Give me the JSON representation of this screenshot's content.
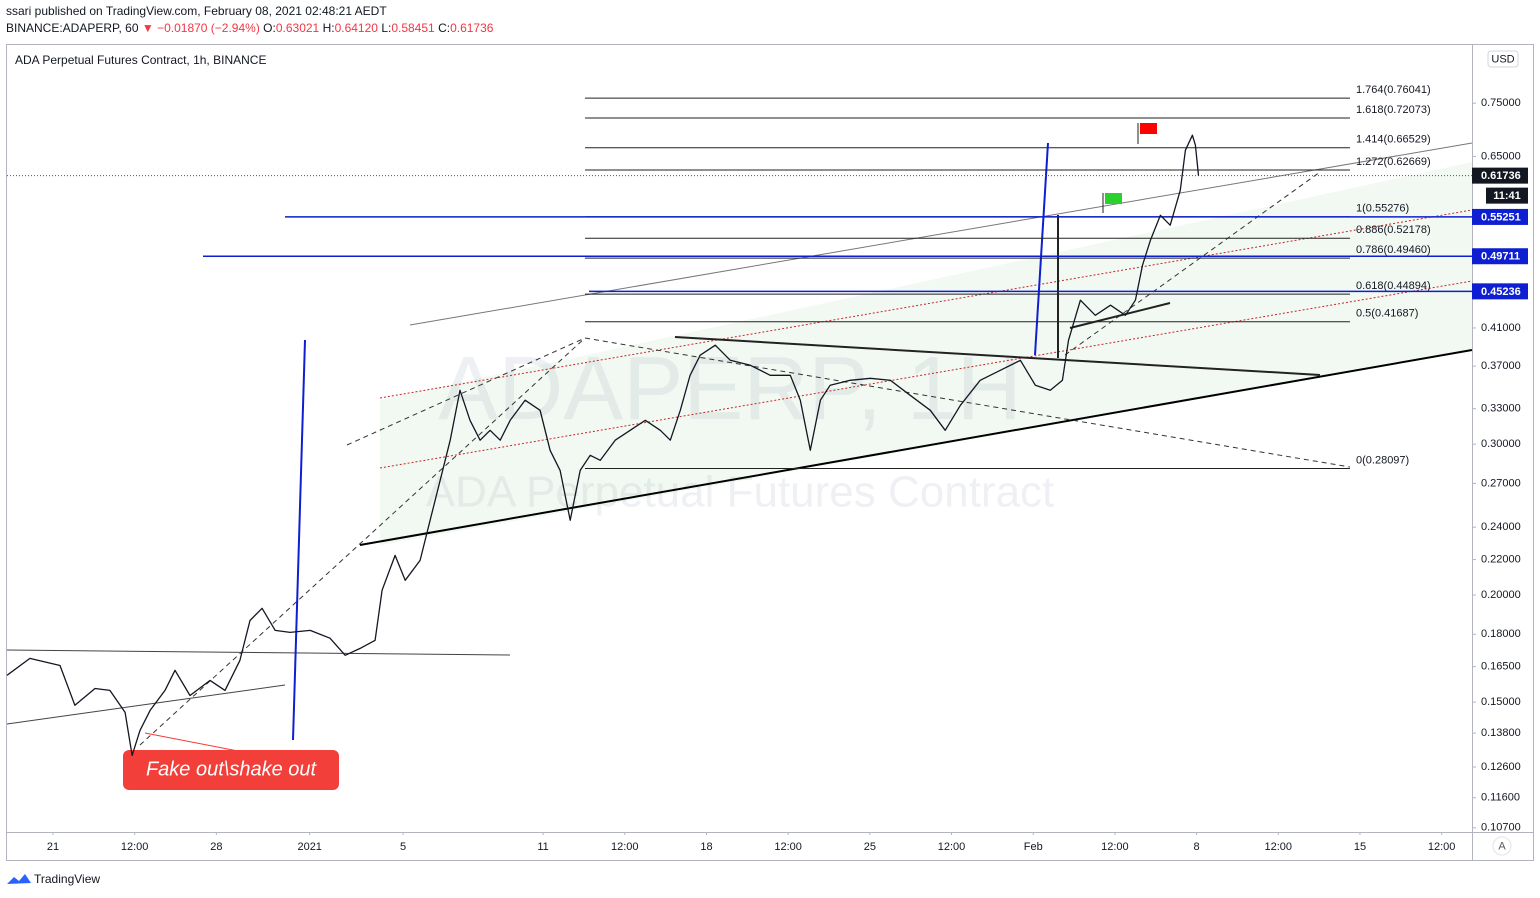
{
  "header": {
    "publisher": "ssari published on TradingView.com, February 08, 2021 02:48:21 AEDT",
    "symbol": "BINANCE:ADAPERP, 60",
    "arrow": "▼",
    "change": "−0.01870 (−2.94%)",
    "ohlc": [
      {
        "key": "O:",
        "value": "0.63021"
      },
      {
        "key": "H:",
        "value": "0.64120"
      },
      {
        "key": "L:",
        "value": "0.58451"
      },
      {
        "key": "C:",
        "value": "0.61736"
      }
    ]
  },
  "chart_data": {
    "type": "line",
    "title": "ADA Perpetual Futures Contract, 1h, BINANCE",
    "watermark": [
      "ADAPERP, 1H",
      "ADA Perpetual Futures Contract"
    ],
    "color": "#131722",
    "yscale": "log",
    "x": [
      -1.97,
      -0.99,
      0.3,
      0.94,
      1.8,
      2.44,
      3.09,
      3.39,
      3.73,
      4.16,
      4.8,
      5.23,
      5.87,
      6.73,
      7.37,
      8.01,
      8.44,
      8.96,
      9.52,
      10.16,
      11.02,
      11.87,
      12.52,
      13.16,
      13.8,
      14.1,
      14.66,
      15.09,
      15.73,
      16.16,
      16.59,
      17.02,
      17.44,
      17.87,
      18.3,
      18.73,
      19.16,
      19.59,
      20.23,
      20.87,
      21.3,
      21.73,
      22.16,
      22.59,
      23.02,
      23.45,
      24.09,
      24.73,
      25.38,
      26.02,
      26.45,
      26.88,
      27.3,
      27.73,
      28.38,
      29.02,
      29.88,
      30.73,
      31.59,
      32.02,
      32.45,
      32.88,
      33.3,
      34.16,
      35.02,
      35.88,
      36.73,
      37.59,
      38.23,
      38.88,
      39.73,
      40.59,
      41.45,
      42.09,
      42.73,
      43.25,
      43.51,
      44.02,
      44.66,
      45.31,
      45.95,
      46.38,
      46.68,
      47.02,
      47.45,
      47.87,
      48.3,
      48.52,
      48.82,
      48.95,
      49.08
    ],
    "values": [
      0.1612,
      0.1687,
      0.1655,
      0.1487,
      0.1556,
      0.1548,
      0.1459,
      0.13,
      0.139,
      0.1467,
      0.1548,
      0.1634,
      0.1527,
      0.159,
      0.1548,
      0.1678,
      0.1868,
      0.193,
      0.1819,
      0.1809,
      0.1819,
      0.1781,
      0.1701,
      0.1733,
      0.1771,
      0.2026,
      0.2225,
      0.2081,
      0.2195,
      0.2445,
      0.2723,
      0.3032,
      0.3467,
      0.3199,
      0.3032,
      0.3114,
      0.3032,
      0.3199,
      0.3376,
      0.3286,
      0.2951,
      0.2796,
      0.2445,
      0.2796,
      0.2912,
      0.2873,
      0.3032,
      0.3114,
      0.3199,
      0.3114,
      0.3032,
      0.3286,
      0.361,
      0.381,
      0.3914,
      0.3758,
      0.3708,
      0.361,
      0.361,
      0.3376,
      0.2951,
      0.3376,
      0.3515,
      0.3562,
      0.3581,
      0.3562,
      0.3421,
      0.3286,
      0.3114,
      0.333,
      0.3562,
      0.3659,
      0.3758,
      0.3515,
      0.3467,
      0.3562,
      0.3966,
      0.4417,
      0.4242,
      0.4358,
      0.4242,
      0.4417,
      0.4853,
      0.5189,
      0.555,
      0.5403,
      0.5936,
      0.661,
      0.6882,
      0.6699,
      0.6174
    ],
    "xlim": [
      -1.97,
      60.8
    ],
    "xticks": [
      {
        "value": 0,
        "label": "21"
      },
      {
        "value": 3.5,
        "label": "12:00"
      },
      {
        "value": 7,
        "label": "28"
      },
      {
        "value": 11,
        "label": "2021"
      },
      {
        "value": 15,
        "label": "5"
      },
      {
        "value": 21,
        "label": "11"
      },
      {
        "value": 24.5,
        "label": "12:00"
      },
      {
        "value": 28,
        "label": "18"
      },
      {
        "value": 31.5,
        "label": "12:00"
      },
      {
        "value": 35,
        "label": "25"
      },
      {
        "value": 38.5,
        "label": "12:00"
      },
      {
        "value": 42,
        "label": "Feb"
      },
      {
        "value": 45.5,
        "label": "12:00"
      },
      {
        "value": 49,
        "label": "8"
      },
      {
        "value": 52.5,
        "label": "12:00"
      },
      {
        "value": 56,
        "label": "15"
      },
      {
        "value": 59.5,
        "label": "12:00"
      }
    ],
    "ylim": [
      0.1058,
      0.877
    ],
    "yticks": [
      {
        "value": 0.75,
        "label": "0.75000"
      },
      {
        "value": 0.65,
        "label": "0.65000"
      },
      {
        "value": 0.41,
        "label": "0.41000"
      },
      {
        "value": 0.37,
        "label": "0.37000"
      },
      {
        "value": 0.33,
        "label": "0.33000"
      },
      {
        "value": 0.3,
        "label": "0.30000"
      },
      {
        "value": 0.27,
        "label": "0.27000"
      },
      {
        "value": 0.24,
        "label": "0.24000"
      },
      {
        "value": 0.22,
        "label": "0.22000"
      },
      {
        "value": 0.2,
        "label": "0.20000"
      },
      {
        "value": 0.18,
        "label": "0.18000"
      },
      {
        "value": 0.165,
        "label": "0.16500"
      },
      {
        "value": 0.15,
        "label": "0.15000"
      },
      {
        "value": 0.138,
        "label": "0.13800"
      },
      {
        "value": 0.126,
        "label": "0.12600"
      },
      {
        "value": 0.116,
        "label": "0.11600"
      },
      {
        "value": 0.107,
        "label": "0.10700"
      }
    ],
    "grid": false,
    "fib_levels": [
      {
        "value": 0.76041,
        "label": "1.764(0.76041)"
      },
      {
        "value": 0.72073,
        "label": "1.618(0.72073)"
      },
      {
        "value": 0.66529,
        "label": "1.414(0.66529)"
      },
      {
        "value": 0.62669,
        "label": "1.272(0.62669)"
      },
      {
        "value": 0.55276,
        "label": "1(0.55276)"
      },
      {
        "value": 0.52178,
        "label": "0.886(0.52178)"
      },
      {
        "value": 0.4946,
        "label": "0.786(0.49460)"
      },
      {
        "value": 0.44894,
        "label": "0.618(0.44894)"
      },
      {
        "value": 0.41687,
        "label": "0.5(0.41687)"
      },
      {
        "value": 0.28097,
        "label": "0(0.28097)"
      }
    ],
    "price_tags": [
      {
        "value": 0.61736,
        "color": "#131722"
      },
      {
        "value": 0.55251,
        "color": "#0d1fd1"
      },
      {
        "value": 0.49711,
        "color": "#0d1fd1"
      },
      {
        "value": 0.45236,
        "color": "#0d1fd1"
      }
    ],
    "countdown": "11:41",
    "annotation": "Fake out\\shake out",
    "currency": "USD",
    "scale_button": "A",
    "footer": "TradingView"
  }
}
